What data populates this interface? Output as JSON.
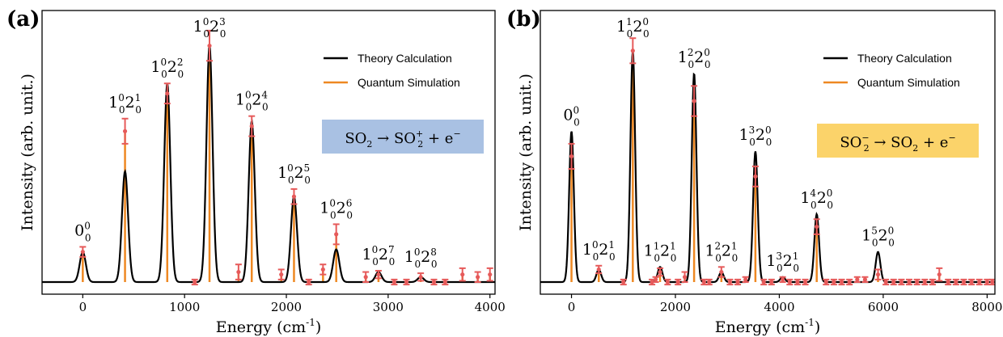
{
  "chart_data": [
    {
      "type": "line",
      "panel_label": "(a)",
      "xlabel": "Energy (cm",
      "xlabel_sup": "-1",
      "xlabel_tail": ")",
      "ylabel": "Intensity (arb. unit.)",
      "xlim": [
        -400,
        4050
      ],
      "ylim": [
        0,
        1.08
      ],
      "xticks": [
        0,
        1000,
        2000,
        3000,
        4000
      ],
      "peak_width": 30,
      "legend": {
        "position": "top-right",
        "entries": [
          "Theory Calculation",
          "Quantum Simulation"
        ],
        "colors": [
          "#000000",
          "#ee8822"
        ]
      },
      "reaction_box": {
        "left": "SO",
        "left_sub": "2",
        "arrow": "→",
        "right": "SO",
        "right_sub": "2",
        "right_sup": "+",
        "plus": "+",
        "electron": "e",
        "electron_sup": "−",
        "bg": "#a9c1e3"
      },
      "peaks": [
        {
          "x": 0,
          "theory": 0.12,
          "quantum": 0.12,
          "err": 0.02,
          "label": {
            "base": "0",
            "sup": "0",
            "sub": "0",
            "base2": "",
            "sup2": "",
            "sub2": ""
          }
        },
        {
          "x": 415,
          "theory": 0.44,
          "quantum": 0.6,
          "err": 0.05,
          "label": {
            "base": "1",
            "sup": "0",
            "sub": "0",
            "base2": "2",
            "sup2": "1",
            "sub2": "0"
          }
        },
        {
          "x": 830,
          "theory": 0.79,
          "quantum": 0.75,
          "err": 0.04,
          "label": {
            "base": "1",
            "sup": "0",
            "sub": "0",
            "base2": "2",
            "sup2": "2",
            "sub2": "0"
          }
        },
        {
          "x": 1245,
          "theory": 0.94,
          "quantum": 0.94,
          "err": 0.06,
          "label": {
            "base": "1",
            "sup": "0",
            "sub": "0",
            "base2": "2",
            "sup2": "3",
            "sub2": "0"
          }
        },
        {
          "x": 1660,
          "theory": 0.64,
          "quantum": 0.62,
          "err": 0.04,
          "label": {
            "base": "1",
            "sup": "0",
            "sub": "0",
            "base2": "2",
            "sup2": "4",
            "sub2": "0"
          }
        },
        {
          "x": 2075,
          "theory": 0.34,
          "quantum": 0.34,
          "err": 0.03,
          "label": {
            "base": "1",
            "sup": "0",
            "sub": "0",
            "base2": "2",
            "sup2": "5",
            "sub2": "0"
          }
        },
        {
          "x": 2490,
          "theory": 0.13,
          "quantum": 0.19,
          "err": 0.04,
          "label": {
            "base": "1",
            "sup": "0",
            "sub": "0",
            "base2": "2",
            "sup2": "6",
            "sub2": "0"
          }
        },
        {
          "x": 2905,
          "theory": 0.04,
          "quantum": 0.03,
          "err": 0.015,
          "label": {
            "base": "1",
            "sup": "0",
            "sub": "0",
            "base2": "2",
            "sup2": "7",
            "sub2": "0"
          }
        },
        {
          "x": 3320,
          "theory": 0.02,
          "quantum": 0.02,
          "err": 0.015,
          "label": {
            "base": "1",
            "sup": "0",
            "sub": "0",
            "base2": "2",
            "sup2": "8",
            "sub2": "0"
          }
        }
      ],
      "noise_points": [
        {
          "x": 1100,
          "y": 0.0,
          "err": 0.01
        },
        {
          "x": 1530,
          "y": 0.04,
          "err": 0.03
        },
        {
          "x": 1950,
          "y": 0.03,
          "err": 0.02
        },
        {
          "x": 2220,
          "y": 0.0,
          "err": 0.01
        },
        {
          "x": 2360,
          "y": 0.05,
          "err": 0.02
        },
        {
          "x": 2780,
          "y": 0.02,
          "err": 0.02
        },
        {
          "x": 3060,
          "y": 0.0,
          "err": 0.01
        },
        {
          "x": 3180,
          "y": 0.0,
          "err": 0.01
        },
        {
          "x": 3450,
          "y": 0.0,
          "err": 0.01
        },
        {
          "x": 3560,
          "y": 0.0,
          "err": 0.01
        },
        {
          "x": 3730,
          "y": 0.03,
          "err": 0.025
        },
        {
          "x": 3880,
          "y": 0.02,
          "err": 0.02
        },
        {
          "x": 4000,
          "y": 0.03,
          "err": 0.025
        }
      ]
    },
    {
      "type": "line",
      "panel_label": "(b)",
      "xlabel": "Energy (cm",
      "xlabel_sup": "-1",
      "xlabel_tail": ")",
      "ylabel": "Intensity (arb. unit.)",
      "xlim": [
        -600,
        8150
      ],
      "ylim": [
        0,
        1.08
      ],
      "xticks": [
        0,
        2000,
        4000,
        6000,
        8000
      ],
      "peak_width": 45,
      "legend": {
        "position": "top-right",
        "entries": [
          "Theory Calculation",
          "Quantum Simulation"
        ],
        "colors": [
          "#000000",
          "#ee8822"
        ]
      },
      "reaction_box": {
        "left": "SO",
        "left_sub": "2",
        "left_sup": "−",
        "arrow": "→",
        "right": "SO",
        "right_sub": "2",
        "plus": "+",
        "electron": "e",
        "electron_sup": "−",
        "bg": "#fbd36a"
      },
      "peaks": [
        {
          "x": 0,
          "theory": 0.6,
          "quantum": 0.5,
          "err": 0.05,
          "label": {
            "base": "0",
            "sup": "0",
            "sub": "0",
            "base2": "",
            "sup2": "",
            "sub2": ""
          }
        },
        {
          "x": 525,
          "theory": 0.05,
          "quantum": 0.05,
          "err": 0.015,
          "label": {
            "base": "1",
            "sup": "0",
            "sub": "0",
            "base2": "2",
            "sup2": "1",
            "sub2": "0"
          }
        },
        {
          "x": 1180,
          "theory": 0.92,
          "quantum": 0.92,
          "err": 0.05,
          "label": {
            "base": "1",
            "sup": "1",
            "sub": "0",
            "base2": "2",
            "sup2": "0",
            "sub2": "0"
          }
        },
        {
          "x": 1705,
          "theory": 0.06,
          "quantum": 0.04,
          "err": 0.015,
          "label": {
            "base": "1",
            "sup": "1",
            "sub": "0",
            "base2": "2",
            "sup2": "1",
            "sub2": "0"
          }
        },
        {
          "x": 2360,
          "theory": 0.83,
          "quantum": 0.72,
          "err": 0.06,
          "label": {
            "base": "1",
            "sup": "2",
            "sub": "0",
            "base2": "2",
            "sup2": "0",
            "sub2": "0"
          }
        },
        {
          "x": 2885,
          "theory": 0.04,
          "quantum": 0.04,
          "err": 0.02,
          "label": {
            "base": "1",
            "sup": "2",
            "sub": "0",
            "base2": "2",
            "sup2": "1",
            "sub2": "0"
          }
        },
        {
          "x": 3540,
          "theory": 0.52,
          "quantum": 0.42,
          "err": 0.04,
          "label": {
            "base": "1",
            "sup": "3",
            "sub": "0",
            "base2": "2",
            "sup2": "0",
            "sub2": "0"
          }
        },
        {
          "x": 4065,
          "theory": 0.02,
          "quantum": 0.01,
          "err": 0.01,
          "label": {
            "base": "1",
            "sup": "3",
            "sub": "0",
            "base2": "2",
            "sup2": "1",
            "sub2": "0"
          }
        },
        {
          "x": 4720,
          "theory": 0.27,
          "quantum": 0.22,
          "err": 0.03,
          "label": {
            "base": "1",
            "sup": "4",
            "sub": "0",
            "base2": "2",
            "sup2": "0",
            "sub2": "0"
          }
        },
        {
          "x": 5900,
          "theory": 0.12,
          "quantum": 0.03,
          "err": 0.02,
          "label": {
            "base": "1",
            "sup": "5",
            "sub": "0",
            "base2": "2",
            "sup2": "0",
            "sub2": "0"
          }
        }
      ],
      "noise_points": [
        {
          "x": 1000,
          "y": 0.0,
          "err": 0.01
        },
        {
          "x": 1550,
          "y": 0.0,
          "err": 0.01
        },
        {
          "x": 1620,
          "y": 0.01,
          "err": 0.01
        },
        {
          "x": 1850,
          "y": 0.0,
          "err": 0.01
        },
        {
          "x": 2050,
          "y": 0.0,
          "err": 0.01
        },
        {
          "x": 2180,
          "y": 0.02,
          "err": 0.02
        },
        {
          "x": 2550,
          "y": 0.0,
          "err": 0.01
        },
        {
          "x": 2650,
          "y": 0.0,
          "err": 0.01
        },
        {
          "x": 3050,
          "y": 0.0,
          "err": 0.01
        },
        {
          "x": 3200,
          "y": 0.0,
          "err": 0.01
        },
        {
          "x": 3350,
          "y": 0.01,
          "err": 0.01
        },
        {
          "x": 3700,
          "y": 0.0,
          "err": 0.01
        },
        {
          "x": 3850,
          "y": 0.0,
          "err": 0.01
        },
        {
          "x": 4200,
          "y": 0.0,
          "err": 0.01
        },
        {
          "x": 4350,
          "y": 0.0,
          "err": 0.01
        },
        {
          "x": 4500,
          "y": 0.0,
          "err": 0.01
        },
        {
          "x": 4900,
          "y": 0.0,
          "err": 0.01
        },
        {
          "x": 5050,
          "y": 0.0,
          "err": 0.01
        },
        {
          "x": 5200,
          "y": 0.0,
          "err": 0.01
        },
        {
          "x": 5350,
          "y": 0.0,
          "err": 0.01
        },
        {
          "x": 5500,
          "y": 0.01,
          "err": 0.01
        },
        {
          "x": 5650,
          "y": 0.01,
          "err": 0.01
        },
        {
          "x": 6050,
          "y": 0.0,
          "err": 0.01
        },
        {
          "x": 6200,
          "y": 0.0,
          "err": 0.01
        },
        {
          "x": 6350,
          "y": 0.0,
          "err": 0.01
        },
        {
          "x": 6500,
          "y": 0.0,
          "err": 0.01
        },
        {
          "x": 6650,
          "y": 0.0,
          "err": 0.01
        },
        {
          "x": 6800,
          "y": 0.0,
          "err": 0.01
        },
        {
          "x": 6950,
          "y": 0.0,
          "err": 0.01
        },
        {
          "x": 7080,
          "y": 0.03,
          "err": 0.025
        },
        {
          "x": 7250,
          "y": 0.0,
          "err": 0.01
        },
        {
          "x": 7400,
          "y": 0.0,
          "err": 0.01
        },
        {
          "x": 7550,
          "y": 0.0,
          "err": 0.01
        },
        {
          "x": 7700,
          "y": 0.0,
          "err": 0.01
        },
        {
          "x": 7850,
          "y": 0.0,
          "err": 0.01
        },
        {
          "x": 8000,
          "y": 0.0,
          "err": 0.01
        },
        {
          "x": 8100,
          "y": 0.0,
          "err": 0.01
        }
      ]
    }
  ]
}
